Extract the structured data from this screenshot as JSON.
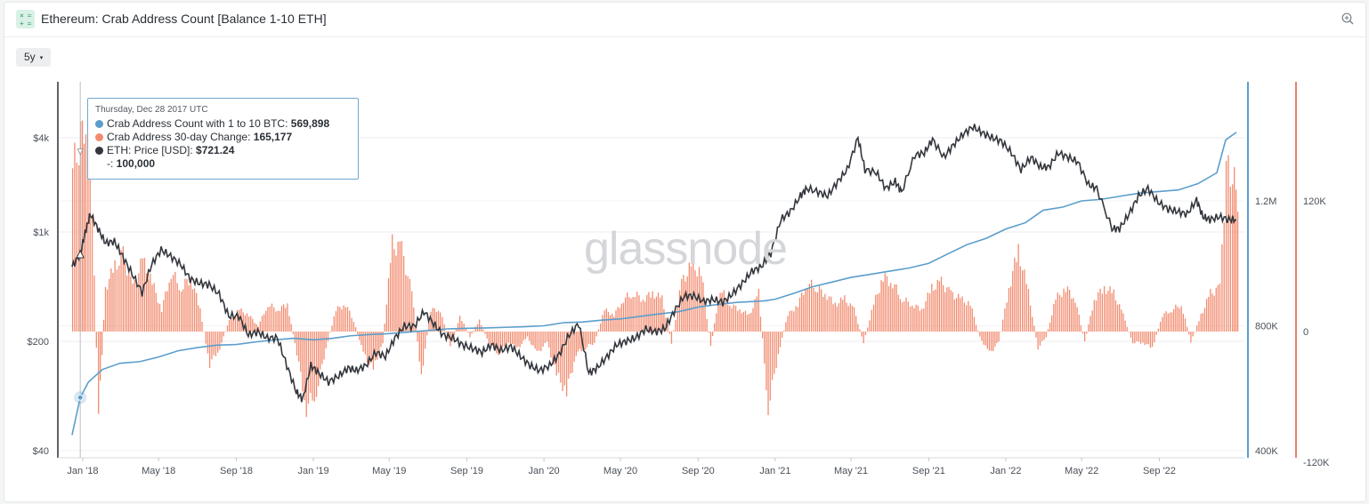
{
  "header": {
    "logo_text": "× =\n+ =",
    "title": "Ethereum: Crab Address Count [Balance 1-10 ETH]",
    "zoom_icon": "zoom-in-icon"
  },
  "controls": {
    "range_label": "5y",
    "range_caret": "▾"
  },
  "watermark": "glassnode",
  "tooltip": {
    "date": "Thursday, Dec 28 2017 UTC",
    "rows": [
      {
        "color": "#5b9ecc",
        "label": "Crab Address Count with 1 to 10 BTC: ",
        "value": "569,898"
      },
      {
        "color": "#f28c70",
        "label": "Crab Address 30-day Change: ",
        "value": "165,177"
      },
      {
        "color": "#33373d",
        "label": "ETH: Price [USD]: ",
        "value": "$721.24"
      },
      {
        "color": "",
        "label": "-: ",
        "value": "100,000"
      }
    ]
  },
  "colors": {
    "count_line": "#5b9ecc",
    "change_bars": "#f28c70",
    "price_line": "#33373d",
    "right_axis_count": "#5b9ecc",
    "right_axis_change": "#e8826a"
  },
  "chart_data": {
    "type": "line",
    "x_tick_labels": [
      "Jan '18",
      "May '18",
      "Sep '18",
      "Jan '19",
      "May '19",
      "Sep '19",
      "Jan '20",
      "May '20",
      "Sep '20",
      "Jan '21",
      "May '21",
      "Sep '21",
      "Jan '22",
      "May '22",
      "Sep '22"
    ],
    "left_axis": {
      "label": "",
      "scale": "log",
      "ticks": [
        "$40",
        "$200",
        "$1k",
        "$4k"
      ],
      "tick_values": [
        40,
        200,
        1000,
        4000
      ]
    },
    "right_axis_count": {
      "label": "",
      "ticks": [
        "400K",
        "800K",
        "1.2M"
      ],
      "tick_values": [
        400000,
        800000,
        1200000
      ],
      "range": [
        400000,
        1550000
      ]
    },
    "right_axis_change": {
      "label": "",
      "ticks": [
        "-120K",
        "0",
        "120K"
      ],
      "tick_values": [
        -120000,
        0,
        120000
      ],
      "range": [
        -120000,
        210000
      ]
    },
    "series": [
      {
        "name": "Crab Address Count with 1 to 10 BTC",
        "axis": "right_axis_count",
        "x": [
          "2017-12-15",
          "2017-12-28",
          "2018-01-10",
          "2018-02-01",
          "2018-03-01",
          "2018-04-01",
          "2018-05-01",
          "2018-06-01",
          "2018-07-01",
          "2018-08-01",
          "2018-09-01",
          "2018-10-01",
          "2018-11-01",
          "2018-12-01",
          "2019-01-01",
          "2019-02-01",
          "2019-03-01",
          "2019-04-01",
          "2019-05-01",
          "2019-06-01",
          "2019-07-01",
          "2019-08-01",
          "2019-09-01",
          "2019-10-01",
          "2019-11-01",
          "2019-12-01",
          "2020-01-01",
          "2020-02-01",
          "2020-03-01",
          "2020-04-01",
          "2020-05-01",
          "2020-06-01",
          "2020-07-01",
          "2020-08-01",
          "2020-09-01",
          "2020-10-01",
          "2020-11-01",
          "2020-12-01",
          "2020-12-15",
          "2021-01-01",
          "2021-02-01",
          "2021-03-01",
          "2021-04-01",
          "2021-05-01",
          "2021-06-01",
          "2021-07-01",
          "2021-08-01",
          "2021-09-01",
          "2021-10-01",
          "2021-11-01",
          "2021-12-01",
          "2022-01-01",
          "2022-02-01",
          "2022-03-01",
          "2022-04-01",
          "2022-05-01",
          "2022-06-01",
          "2022-07-01",
          "2022-08-01",
          "2022-09-01",
          "2022-10-01",
          "2022-11-01",
          "2022-12-01",
          "2022-12-15",
          "2023-01-01"
        ],
        "values": [
          450000,
          570000,
          620000,
          660000,
          680000,
          685000,
          700000,
          720000,
          730000,
          738000,
          740000,
          748000,
          755000,
          760000,
          755000,
          760000,
          768000,
          772000,
          775000,
          780000,
          785000,
          790000,
          792000,
          793000,
          795000,
          797000,
          800000,
          810000,
          812000,
          818000,
          822000,
          830000,
          838000,
          845000,
          860000,
          868000,
          875000,
          878000,
          880000,
          885000,
          905000,
          925000,
          940000,
          955000,
          965000,
          975000,
          985000,
          1000000,
          1030000,
          1060000,
          1080000,
          1110000,
          1130000,
          1170000,
          1180000,
          1200000,
          1205000,
          1215000,
          1225000,
          1230000,
          1235000,
          1255000,
          1290000,
          1395000,
          1420000
        ]
      },
      {
        "name": "Crab Address 30-day Change",
        "axis": "right_axis_change",
        "type": "bar",
        "x": [
          "2017-12-15",
          "2017-12-25",
          "2018-01-05",
          "2018-01-15",
          "2018-01-25",
          "2018-02-05",
          "2018-02-20",
          "2018-03-05",
          "2018-03-20",
          "2018-04-05",
          "2018-04-20",
          "2018-05-05",
          "2018-05-20",
          "2018-06-05",
          "2018-06-20",
          "2018-07-05",
          "2018-07-20",
          "2018-08-05",
          "2018-08-20",
          "2018-09-05",
          "2018-09-20",
          "2018-10-05",
          "2018-10-20",
          "2018-11-05",
          "2018-11-20",
          "2018-12-05",
          "2018-12-20",
          "2019-01-05",
          "2019-01-20",
          "2019-02-05",
          "2019-02-20",
          "2019-03-05",
          "2019-03-20",
          "2019-04-05",
          "2019-04-20",
          "2019-05-05",
          "2019-05-20",
          "2019-06-05",
          "2019-06-20",
          "2019-07-05",
          "2019-07-20",
          "2019-08-05",
          "2019-08-20",
          "2019-09-05",
          "2019-09-20",
          "2019-10-05",
          "2019-10-20",
          "2019-11-05",
          "2019-11-20",
          "2019-12-05",
          "2019-12-20",
          "2020-01-05",
          "2020-01-20",
          "2020-02-05",
          "2020-02-20",
          "2020-03-05",
          "2020-03-20",
          "2020-04-05",
          "2020-04-20",
          "2020-05-05",
          "2020-05-20",
          "2020-06-05",
          "2020-06-20",
          "2020-07-05",
          "2020-07-20",
          "2020-08-05",
          "2020-08-20",
          "2020-09-05",
          "2020-09-20",
          "2020-10-05",
          "2020-10-20",
          "2020-11-05",
          "2020-11-20",
          "2020-12-05",
          "2020-12-20",
          "2021-01-05",
          "2021-01-20",
          "2021-02-05",
          "2021-02-20",
          "2021-03-05",
          "2021-03-20",
          "2021-04-05",
          "2021-04-20",
          "2021-05-05",
          "2021-05-20",
          "2021-06-05",
          "2021-06-20",
          "2021-07-05",
          "2021-07-20",
          "2021-08-05",
          "2021-08-20",
          "2021-09-05",
          "2021-09-20",
          "2021-10-05",
          "2021-10-20",
          "2021-11-05",
          "2021-11-20",
          "2021-12-05",
          "2021-12-20",
          "2022-01-05",
          "2022-01-20",
          "2022-02-05",
          "2022-02-20",
          "2022-03-05",
          "2022-03-20",
          "2022-04-05",
          "2022-04-20",
          "2022-05-05",
          "2022-05-20",
          "2022-06-05",
          "2022-06-20",
          "2022-07-05",
          "2022-07-20",
          "2022-08-05",
          "2022-08-20",
          "2022-09-05",
          "2022-09-20",
          "2022-10-05",
          "2022-10-20",
          "2022-11-05",
          "2022-11-20",
          "2022-12-05",
          "2022-12-15",
          "2022-12-25",
          "2023-01-05"
        ],
        "values": [
          150000,
          165000,
          205000,
          120000,
          -80000,
          40000,
          60000,
          70000,
          40000,
          65000,
          45000,
          20000,
          55000,
          40000,
          50000,
          20000,
          -30000,
          -15000,
          10000,
          20000,
          15000,
          5000,
          25000,
          20000,
          25000,
          -20000,
          -70000,
          -55000,
          -15000,
          20000,
          25000,
          10000,
          -20000,
          -35000,
          -10000,
          80000,
          75000,
          35000,
          -40000,
          20000,
          20000,
          -15000,
          15000,
          -5000,
          10000,
          -10000,
          -20000,
          -10000,
          -15000,
          -5000,
          -20000,
          -10000,
          -40000,
          -55000,
          -20000,
          -15000,
          -10000,
          20000,
          15000,
          30000,
          35000,
          30000,
          35000,
          30000,
          -10000,
          45000,
          60000,
          55000,
          -15000,
          40000,
          25000,
          20000,
          15000,
          35000,
          -70000,
          -20000,
          15000,
          25000,
          45000,
          40000,
          35000,
          25000,
          30000,
          20000,
          -10000,
          25000,
          50000,
          45000,
          30000,
          25000,
          20000,
          40000,
          45000,
          35000,
          30000,
          25000,
          -5000,
          -20000,
          -10000,
          40000,
          75000,
          35000,
          -15000,
          -5000,
          30000,
          40000,
          30000,
          -10000,
          30000,
          40000,
          35000,
          15000,
          -10000,
          -10000,
          -15000,
          15000,
          20000,
          25000,
          -10000,
          15000,
          35000,
          40000,
          150000,
          140000,
          120000
        ]
      },
      {
        "name": "ETH: Price [USD]",
        "axis": "left_axis",
        "x": [
          "2017-12-15",
          "2017-12-28",
          "2018-01-05",
          "2018-01-13",
          "2018-01-25",
          "2018-02-06",
          "2018-02-20",
          "2018-03-05",
          "2018-03-20",
          "2018-04-05",
          "2018-04-20",
          "2018-05-05",
          "2018-05-20",
          "2018-06-05",
          "2018-06-20",
          "2018-07-05",
          "2018-07-20",
          "2018-08-05",
          "2018-08-20",
          "2018-09-05",
          "2018-09-20",
          "2018-10-05",
          "2018-10-20",
          "2018-11-05",
          "2018-11-20",
          "2018-12-05",
          "2018-12-15",
          "2018-12-28",
          "2019-01-10",
          "2019-01-25",
          "2019-02-10",
          "2019-02-25",
          "2019-03-10",
          "2019-03-25",
          "2019-04-10",
          "2019-04-25",
          "2019-05-10",
          "2019-05-25",
          "2019-06-10",
          "2019-06-25",
          "2019-07-10",
          "2019-07-25",
          "2019-08-10",
          "2019-08-25",
          "2019-09-10",
          "2019-09-25",
          "2019-10-10",
          "2019-10-25",
          "2019-11-10",
          "2019-11-25",
          "2019-12-10",
          "2019-12-25",
          "2020-01-10",
          "2020-01-25",
          "2020-02-10",
          "2020-02-25",
          "2020-03-12",
          "2020-03-25",
          "2020-04-10",
          "2020-04-25",
          "2020-05-10",
          "2020-05-25",
          "2020-06-10",
          "2020-06-25",
          "2020-07-10",
          "2020-07-25",
          "2020-08-10",
          "2020-08-25",
          "2020-09-10",
          "2020-09-25",
          "2020-10-10",
          "2020-10-25",
          "2020-11-10",
          "2020-11-25",
          "2020-12-10",
          "2020-12-25",
          "2021-01-10",
          "2021-01-25",
          "2021-02-10",
          "2021-02-20",
          "2021-03-10",
          "2021-03-25",
          "2021-04-10",
          "2021-04-25",
          "2021-05-12",
          "2021-05-23",
          "2021-06-10",
          "2021-06-25",
          "2021-07-10",
          "2021-07-20",
          "2021-08-10",
          "2021-08-25",
          "2021-09-07",
          "2021-09-25",
          "2021-10-10",
          "2021-10-25",
          "2021-11-10",
          "2021-11-25",
          "2021-12-10",
          "2021-12-25",
          "2022-01-10",
          "2022-01-25",
          "2022-02-10",
          "2022-02-25",
          "2022-03-10",
          "2022-03-25",
          "2022-04-10",
          "2022-04-25",
          "2022-05-12",
          "2022-05-25",
          "2022-06-18",
          "2022-06-30",
          "2022-07-15",
          "2022-07-30",
          "2022-08-14",
          "2022-08-30",
          "2022-09-15",
          "2022-09-30",
          "2022-10-15",
          "2022-10-30",
          "2022-11-09",
          "2022-11-20",
          "2022-12-05",
          "2022-12-20",
          "2023-01-01"
        ],
        "values": [
          600,
          721,
          1000,
          1300,
          1050,
          850,
          870,
          700,
          540,
          410,
          620,
          770,
          700,
          620,
          500,
          470,
          460,
          400,
          290,
          290,
          220,
          230,
          210,
          210,
          140,
          95,
          85,
          140,
          125,
          110,
          120,
          135,
          130,
          140,
          170,
          160,
          210,
          250,
          250,
          310,
          260,
          220,
          210,
          190,
          180,
          170,
          190,
          175,
          185,
          160,
          140,
          130,
          140,
          165,
          220,
          260,
          125,
          135,
          160,
          190,
          200,
          210,
          240,
          230,
          240,
          310,
          390,
          390,
          360,
          370,
          355,
          400,
          470,
          560,
          600,
          730,
          1200,
          1350,
          1700,
          1900,
          1800,
          1700,
          2100,
          2500,
          4000,
          2500,
          2400,
          1900,
          2100,
          1800,
          3100,
          3200,
          3900,
          3000,
          3600,
          4200,
          4700,
          4300,
          4000,
          3800,
          3200,
          2500,
          3000,
          2600,
          2600,
          3200,
          3000,
          2800,
          2000,
          1900,
          1050,
          1050,
          1300,
          1700,
          1900,
          1550,
          1400,
          1350,
          1300,
          1600,
          1250,
          1200,
          1250,
          1200,
          1200
        ]
      }
    ]
  }
}
